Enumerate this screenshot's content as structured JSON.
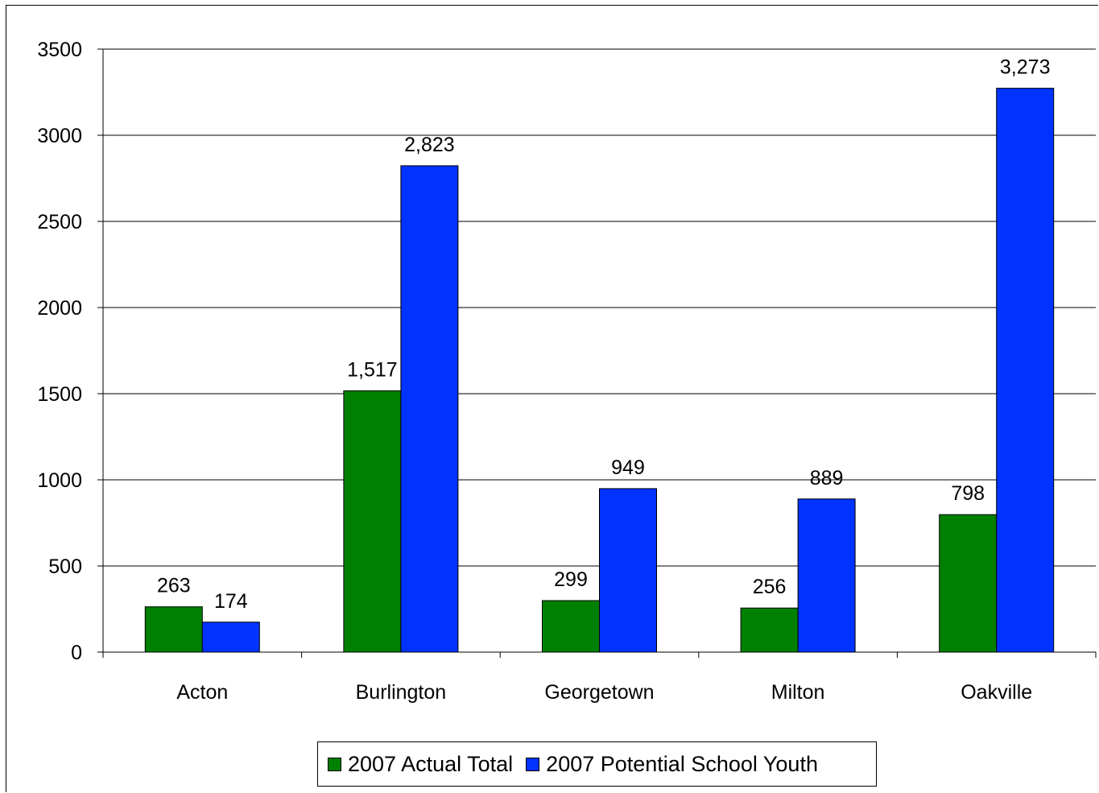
{
  "chart_data": {
    "type": "bar",
    "categories": [
      "Acton",
      "Burlington",
      "Georgetown",
      "Milton",
      "Oakville"
    ],
    "series": [
      {
        "name": "2007 Actual Total",
        "values": [
          263,
          1517,
          299,
          256,
          798
        ],
        "labels": [
          "263",
          "1,517",
          "299",
          "256",
          "798"
        ],
        "color": "#008000"
      },
      {
        "name": "2007 Potential School Youth",
        "values": [
          174,
          2823,
          949,
          889,
          3273
        ],
        "labels": [
          "174",
          "2,823",
          "949",
          "889",
          "3,273"
        ],
        "color": "#0033ff"
      }
    ],
    "yticks": [
      "0",
      "500",
      "1000",
      "1500",
      "2000",
      "2500",
      "3000",
      "3500"
    ],
    "ylim": [
      0,
      3500
    ],
    "grid": true,
    "legend_position": "bottom"
  }
}
